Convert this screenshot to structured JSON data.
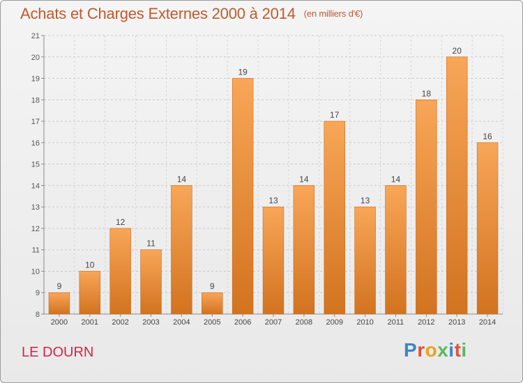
{
  "header": {
    "title": "Achats et Charges Externes 2000 à 2014",
    "unit": "(en milliers d'€)"
  },
  "footer": {
    "city": "LE DOURN",
    "brand": "Proxiti",
    "brand_colors": [
      "#3a86c8",
      "#e2513a",
      "#f0a020",
      "#5cb85c",
      "#3a86c8",
      "#e2513a",
      "#5cb85c"
    ]
  },
  "colors": {
    "bar_top": "#f8a658",
    "bar_bottom": "#d2731f",
    "bar_stroke": "#c96a1e",
    "title": "#c05a2c",
    "city": "#d6234a"
  },
  "chart_data": {
    "type": "bar",
    "title": "Achats et Charges Externes 2000 à 2014",
    "subtitle": "(en milliers d'€)",
    "xlabel": "",
    "ylabel": "",
    "categories": [
      "2000",
      "2001",
      "2002",
      "2003",
      "2004",
      "2005",
      "2006",
      "2007",
      "2008",
      "2009",
      "2010",
      "2011",
      "2012",
      "2013",
      "2014"
    ],
    "values": [
      9,
      10,
      12,
      11,
      14,
      9,
      19,
      13,
      14,
      17,
      13,
      14,
      18,
      20,
      16
    ],
    "ylim": [
      8,
      21
    ],
    "yticks": [
      8,
      9,
      10,
      11,
      12,
      13,
      14,
      15,
      16,
      17,
      18,
      19,
      20,
      21
    ],
    "grid": "horizontal dashed",
    "legend": "none"
  }
}
